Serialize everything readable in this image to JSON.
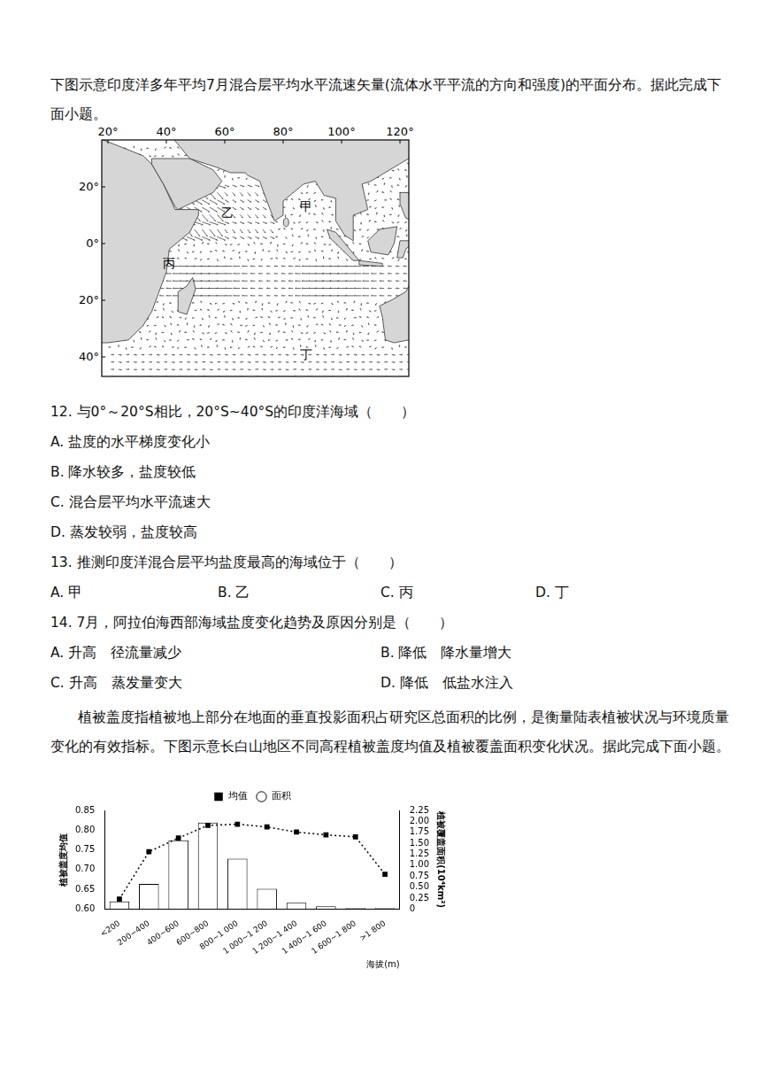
{
  "intro1": "下图示意印度洋多年平均7月混合层平均水平流速矢量(流体水平平流的方向和强度)的平面分布。据此完成下面小题。",
  "map": {
    "lon_labels": [
      {
        "value": 20,
        "label": "20°"
      },
      {
        "value": 40,
        "label": "40°"
      },
      {
        "value": 60,
        "label": "60°"
      },
      {
        "value": 80,
        "label": "80°"
      },
      {
        "value": 100,
        "label": "100°"
      },
      {
        "value": 120,
        "label": "120°"
      }
    ],
    "lat_labels": [
      {
        "value": 20,
        "label": "20°"
      },
      {
        "value": 0,
        "label": "0°"
      },
      {
        "value": -20,
        "label": "20°"
      },
      {
        "value": -40,
        "label": "40°"
      }
    ],
    "markers": [
      "甲",
      "乙",
      "丙",
      "丁"
    ]
  },
  "questions": [
    {
      "stem": "12. 与0°～20°S相比，20°S~40°S的印度洋海域（　　）",
      "options": [
        "A. 盐度的水平梯度变化小",
        "B. 降水较多，盐度较低",
        "C. 混合层平均水平流速大",
        "D. 蒸发较弱，盐度较高"
      ]
    },
    {
      "stem": "13. 推测印度洋混合层平均盐度最高的海域位于（　　）",
      "options": [
        "A. 甲",
        "B. 乙",
        "C. 丙",
        "D. 丁"
      ]
    },
    {
      "stem": "14. 7月，阿拉伯海西部海域盐度变化趋势及原因分别是（　　）",
      "options": [
        "A. 升高　径流量减少",
        "B. 降低　降水量增大",
        "C. 升高　蒸发量变大",
        "D. 降低　低盐水注入"
      ]
    }
  ],
  "intro2": "植被盖度指植被地上部分在地面的垂直投影面积占研究区总面积的比例，是衡量陆表植被状况与环境质量变化的有效指标。下图示意长白山地区不同高程植被盖度均值及植被覆盖面积变化状况。据此完成下面小题。",
  "chart_data": {
    "type": "bar",
    "categories": [
      "<200",
      "200~400",
      "400~600",
      "600~800",
      "800~1 000",
      "1 000~1 200",
      "1 200~1 400",
      "1 400~1 600",
      "1 600~1 800",
      ">1 800"
    ],
    "series": [
      {
        "name": "均值",
        "type": "line",
        "line_style": "dotted",
        "marker": "square",
        "color": "#000000",
        "values": [
          0.625,
          0.745,
          0.78,
          0.812,
          0.815,
          0.808,
          0.795,
          0.788,
          0.783,
          0.688
        ]
      },
      {
        "name": "面积",
        "type": "bar",
        "axis": "y2",
        "color": "#ffffff",
        "values": [
          0.17,
          0.57,
          1.57,
          1.97,
          1.15,
          0.46,
          0.14,
          0.06,
          0.02,
          0.02
        ]
      }
    ],
    "xlabel": "海拔(m)",
    "ylabel": "植被盖度均值",
    "y2label": "植被覆盖面积(10⁴km²)",
    "ylim": [
      0.6,
      0.85
    ],
    "yticks": [
      {
        "value": 0.6,
        "label": "0.60"
      },
      0.65,
      {
        "value": 0.7,
        "label": "0.70"
      },
      0.75,
      {
        "value": 0.8,
        "label": "0.80"
      },
      0.85
    ],
    "y2lim": [
      0,
      2.25
    ],
    "y2ticks": [
      0,
      0.25,
      {
        "value": 0.5,
        "label": "0.50"
      },
      0.75,
      {
        "value": 1,
        "label": "1.00"
      },
      1.25,
      {
        "value": 1.5,
        "label": "1.50"
      },
      1.75,
      {
        "value": 2,
        "label": "2.00"
      },
      2.25
    ],
    "legend": "top"
  }
}
